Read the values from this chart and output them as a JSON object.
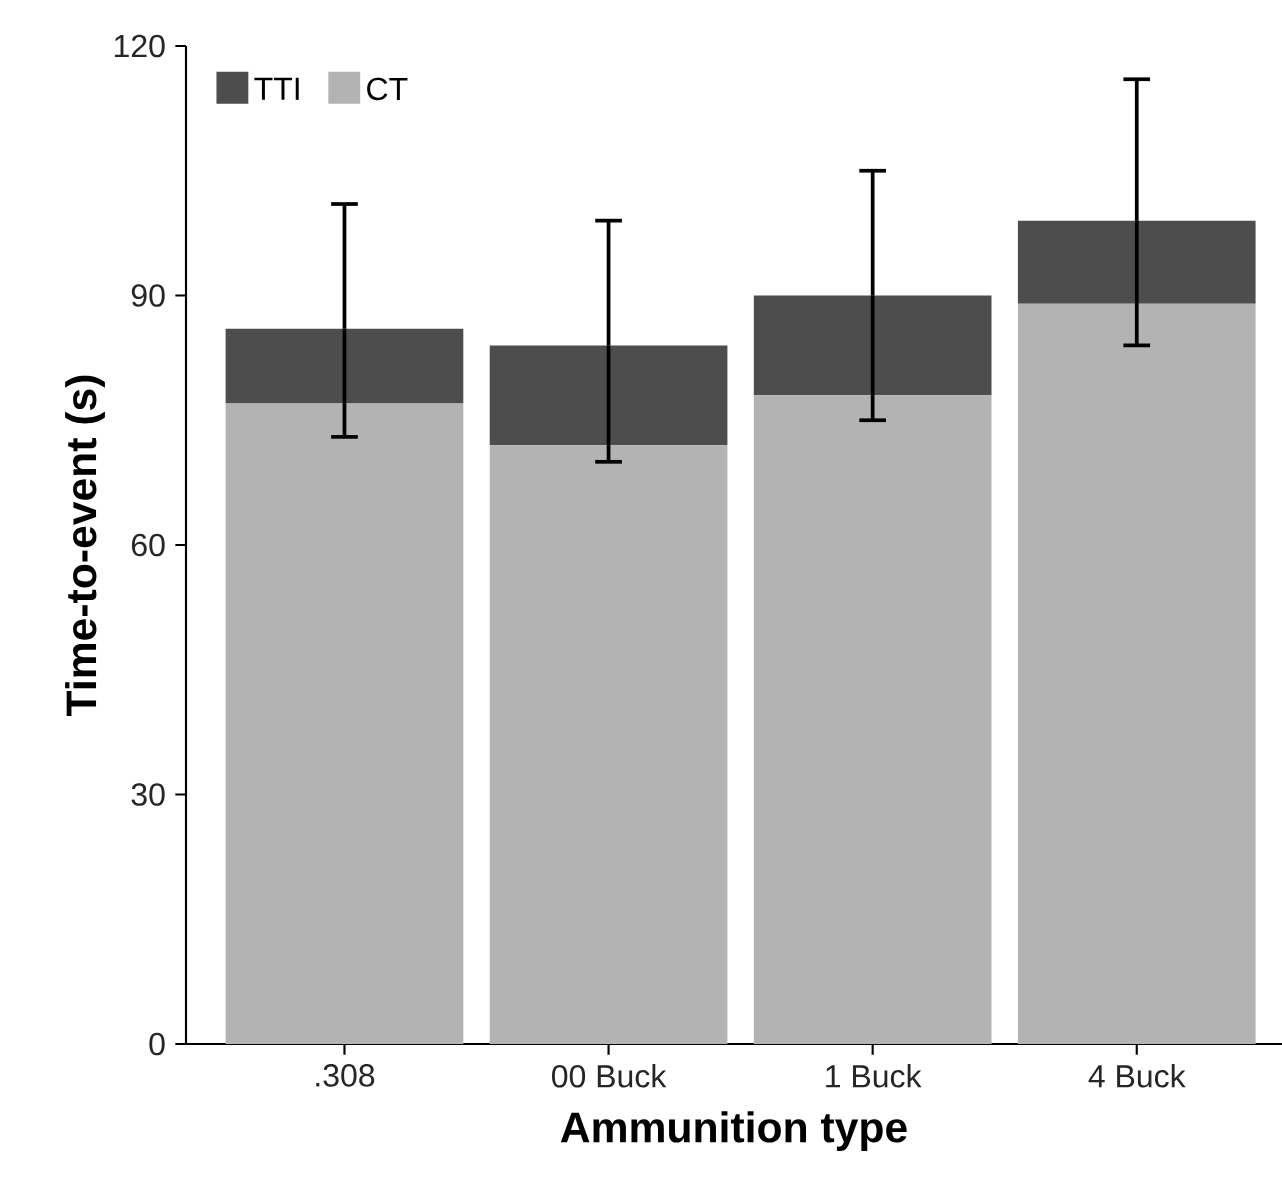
{
  "chart_data": {
    "type": "bar",
    "stacked": true,
    "xlabel": "Ammunition type",
    "ylabel": "Time-to-event (s)",
    "categories": [
      ".308",
      "00 Buck",
      "1 Buck",
      "4 Buck"
    ],
    "series": [
      {
        "name": "CT",
        "color": "#b3b3b3",
        "values": [
          77,
          72,
          78,
          89
        ]
      },
      {
        "name": "TTI",
        "color": "#4d4d4d",
        "values": [
          9,
          12,
          12,
          10
        ],
        "errors": [
          [
            73,
            101
          ],
          [
            70,
            99
          ],
          [
            75,
            105
          ],
          [
            84,
            116
          ]
        ]
      }
    ],
    "ylim": [
      0,
      120
    ],
    "yticks": [
      0,
      30,
      60,
      90,
      120
    ],
    "legend": "top left",
    "grid": false
  }
}
